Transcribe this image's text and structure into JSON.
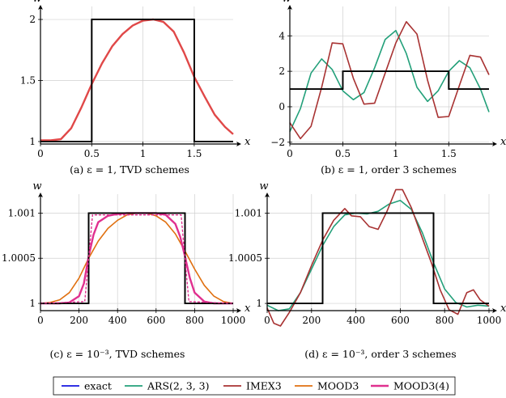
{
  "legend": {
    "entries": [
      {
        "key": "exact",
        "label": "exact",
        "color": "#1515e0"
      },
      {
        "key": "ars",
        "label": "ARS(2, 3, 3)",
        "color": "#23a07a"
      },
      {
        "key": "imex",
        "label": "IMEX3",
        "color": "#a83232"
      },
      {
        "key": "mood3",
        "label": "MOOD3",
        "color": "#e07010"
      },
      {
        "key": "mood34",
        "label": "MOOD3(4)",
        "color": "#e0308f"
      }
    ]
  },
  "colors": {
    "exact": "#000000",
    "exact_legend": "#1515e0",
    "ars": "#23a07a",
    "imex": "#a83232",
    "mood3": "#e07010",
    "mood34": "#e0308f",
    "mood34_panel_a": "#e04848"
  },
  "chart_data": [
    {
      "type": "line",
      "panel": "a",
      "caption": "(a) ε = 1, TVD schemes",
      "xlabel": "x",
      "ylabel": "w",
      "xlim": [
        0,
        1.88
      ],
      "ylim": [
        0.98,
        2.04
      ],
      "xticks": [
        0,
        0.5,
        1,
        1.5
      ],
      "xtick_labels": [
        "0",
        "0.5",
        "1",
        "1.5"
      ],
      "yticks": [
        1,
        1.5,
        2
      ],
      "ytick_labels": [
        "1",
        "1.5",
        "2"
      ],
      "grid": true,
      "series": [
        {
          "key": "exact",
          "color_key": "exact",
          "style": "solid",
          "x": [
            0,
            0.5,
            0.5,
            1.5,
            1.5,
            1.88
          ],
          "y": [
            1,
            1,
            2,
            2,
            1,
            1
          ]
        },
        {
          "key": "mood34",
          "color_key": "mood34_panel_a",
          "style": "solid",
          "x": [
            0,
            0.1,
            0.2,
            0.3,
            0.4,
            0.5,
            0.6,
            0.7,
            0.8,
            0.9,
            1.0,
            1.1,
            1.2,
            1.3,
            1.4,
            1.5,
            1.6,
            1.7,
            1.8,
            1.88
          ],
          "y": [
            1.01,
            1.01,
            1.02,
            1.11,
            1.28,
            1.47,
            1.64,
            1.78,
            1.88,
            1.95,
            1.99,
            2.0,
            1.98,
            1.9,
            1.73,
            1.53,
            1.37,
            1.22,
            1.12,
            1.06
          ]
        }
      ]
    },
    {
      "type": "line",
      "panel": "b",
      "caption": "(b) ε = 1, order 3 schemes",
      "xlabel": "x",
      "ylabel": "w",
      "xlim": [
        0,
        1.88
      ],
      "ylim": [
        -2.1,
        5.2
      ],
      "xticks": [
        0,
        0.5,
        1,
        1.5
      ],
      "xtick_labels": [
        "0",
        "0.5",
        "1",
        "1.5"
      ],
      "yticks": [
        -2,
        0,
        2,
        4
      ],
      "ytick_labels": [
        "−2",
        "0",
        "2",
        "4"
      ],
      "grid": true,
      "series": [
        {
          "key": "exact",
          "color_key": "exact",
          "style": "solid",
          "x": [
            0,
            0.5,
            0.5,
            1.5,
            1.5,
            1.88
          ],
          "y": [
            1,
            1,
            2,
            2,
            1,
            1
          ]
        },
        {
          "key": "ars",
          "color_key": "ars",
          "style": "solid",
          "x": [
            0,
            0.1,
            0.2,
            0.3,
            0.4,
            0.5,
            0.6,
            0.7,
            0.8,
            0.9,
            1.0,
            1.1,
            1.2,
            1.3,
            1.4,
            1.5,
            1.6,
            1.7,
            1.8,
            1.88
          ],
          "y": [
            -1.4,
            -0.1,
            1.9,
            2.7,
            2.1,
            0.9,
            0.4,
            0.8,
            2.2,
            3.8,
            4.3,
            3.0,
            1.1,
            0.3,
            0.9,
            2.0,
            2.6,
            2.2,
            1.0,
            -0.3
          ]
        },
        {
          "key": "imex",
          "color_key": "imex",
          "style": "solid",
          "x": [
            0,
            0.1,
            0.2,
            0.3,
            0.4,
            0.5,
            0.6,
            0.7,
            0.8,
            0.9,
            1.0,
            1.1,
            1.2,
            1.3,
            1.4,
            1.5,
            1.6,
            1.7,
            1.8,
            1.88
          ],
          "y": [
            -0.9,
            -1.8,
            -1.1,
            1.1,
            3.6,
            3.55,
            1.6,
            0.15,
            0.2,
            1.9,
            3.6,
            4.8,
            4.1,
            1.5,
            -0.6,
            -0.55,
            1.2,
            2.9,
            2.8,
            1.8
          ]
        }
      ]
    },
    {
      "type": "line",
      "panel": "c",
      "caption": "(c) ε = 10⁻³, TVD schemes",
      "xlabel": "x",
      "ylabel": "w",
      "xlim": [
        0,
        1000
      ],
      "ylim": [
        0.99992,
        1.00112
      ],
      "xticks": [
        0,
        200,
        400,
        600,
        800,
        1000
      ],
      "xtick_labels": [
        "0",
        "200",
        "400",
        "600",
        "800",
        "1000"
      ],
      "yticks": [
        1,
        1.0005,
        1.001
      ],
      "ytick_labels": [
        "1",
        "1.0005",
        "1.001"
      ],
      "grid": true,
      "series": [
        {
          "key": "exact",
          "color_key": "exact",
          "style": "solid",
          "x": [
            0,
            250,
            250,
            750,
            750,
            1000
          ],
          "y": [
            1,
            1,
            1.001,
            1.001,
            1,
            1
          ]
        },
        {
          "key": "mood3",
          "color_key": "mood3",
          "style": "solid",
          "x": [
            0,
            50,
            100,
            150,
            200,
            250,
            300,
            350,
            400,
            450,
            500,
            550,
            600,
            650,
            700,
            750,
            800,
            850,
            900,
            950,
            1000
          ],
          "y": [
            1.0,
            1.00001,
            1.00004,
            1.00012,
            1.00028,
            1.0005,
            1.00069,
            1.00083,
            1.00092,
            1.00098,
            1.001,
            1.001,
            1.00097,
            1.0009,
            1.00077,
            1.00058,
            1.00038,
            1.0002,
            1.00008,
            1.00002,
            1.0
          ]
        },
        {
          "key": "mood34",
          "color_key": "mood34",
          "style": "solid",
          "x": [
            0,
            100,
            150,
            200,
            225,
            250,
            275,
            300,
            350,
            400,
            450,
            500,
            550,
            600,
            650,
            700,
            725,
            750,
            775,
            800,
            850,
            900,
            1000
          ],
          "y": [
            1.0,
            1.0,
            1.00001,
            1.00008,
            1.00022,
            1.00052,
            1.00076,
            1.0009,
            1.00097,
            1.00099,
            1.001,
            1.001,
            1.001,
            1.001,
            1.00098,
            1.00088,
            1.00074,
            1.00052,
            1.00028,
            1.00012,
            1.00002,
            1.0,
            1.0
          ]
        },
        {
          "key": "exact_dashed",
          "color_key": "mood34",
          "style": "dashed",
          "x": [
            0,
            230,
            250,
            270,
            730,
            750,
            770,
            1000
          ],
          "y": [
            1.0,
            1.00002,
            1.0005,
            1.00098,
            1.00098,
            1.0005,
            1.00002,
            1.0
          ]
        }
      ]
    },
    {
      "type": "line",
      "panel": "d",
      "caption": "(d) ε = 10⁻³, order 3 schemes",
      "xlabel": "x",
      "ylabel": "w",
      "xlim": [
        0,
        1000
      ],
      "ylim": [
        0.99992,
        1.00112
      ],
      "xticks": [
        0,
        200,
        400,
        600,
        800,
        1000
      ],
      "xtick_labels": [
        "0",
        "200",
        "400",
        "600",
        "800",
        "1000"
      ],
      "yticks": [
        1,
        1.0005,
        1.001
      ],
      "ytick_labels": [
        "1",
        "1.0005",
        "1.001"
      ],
      "grid": true,
      "series": [
        {
          "key": "exact",
          "color_key": "exact",
          "style": "solid",
          "x": [
            0,
            250,
            250,
            750,
            750,
            1000
          ],
          "y": [
            1,
            1,
            1.001,
            1.001,
            1,
            1
          ]
        },
        {
          "key": "ars",
          "color_key": "ars",
          "style": "solid",
          "x": [
            0,
            50,
            100,
            150,
            200,
            250,
            300,
            350,
            400,
            450,
            500,
            550,
            600,
            650,
            700,
            750,
            800,
            850,
            900,
            950,
            1000
          ],
          "y": [
            0.99998,
            0.99992,
            0.99994,
            1.00012,
            1.00038,
            1.00064,
            1.00085,
            1.00098,
            1.001,
            1.00099,
            1.00102,
            1.0011,
            1.00114,
            1.00104,
            1.00078,
            1.00045,
            1.00016,
            1.00001,
            0.99996,
            0.99998,
            0.99997
          ]
        },
        {
          "key": "imex",
          "color_key": "imex",
          "style": "solid",
          "x": [
            0,
            30,
            60,
            100,
            150,
            200,
            250,
            300,
            350,
            380,
            420,
            460,
            500,
            540,
            580,
            610,
            650,
            700,
            740,
            780,
            820,
            860,
            900,
            930,
            960,
            1000
          ],
          "y": [
            0.99995,
            0.99978,
            0.99975,
            0.9999,
            1.00012,
            1.00042,
            1.0007,
            1.00092,
            1.00105,
            1.00097,
            1.00096,
            1.00085,
            1.00082,
            1.00102,
            1.00126,
            1.00126,
            1.00106,
            1.00072,
            1.00045,
            1.00015,
            0.99993,
            0.99988,
            1.00012,
            1.00015,
            1.00004,
            0.99997
          ]
        }
      ]
    }
  ]
}
